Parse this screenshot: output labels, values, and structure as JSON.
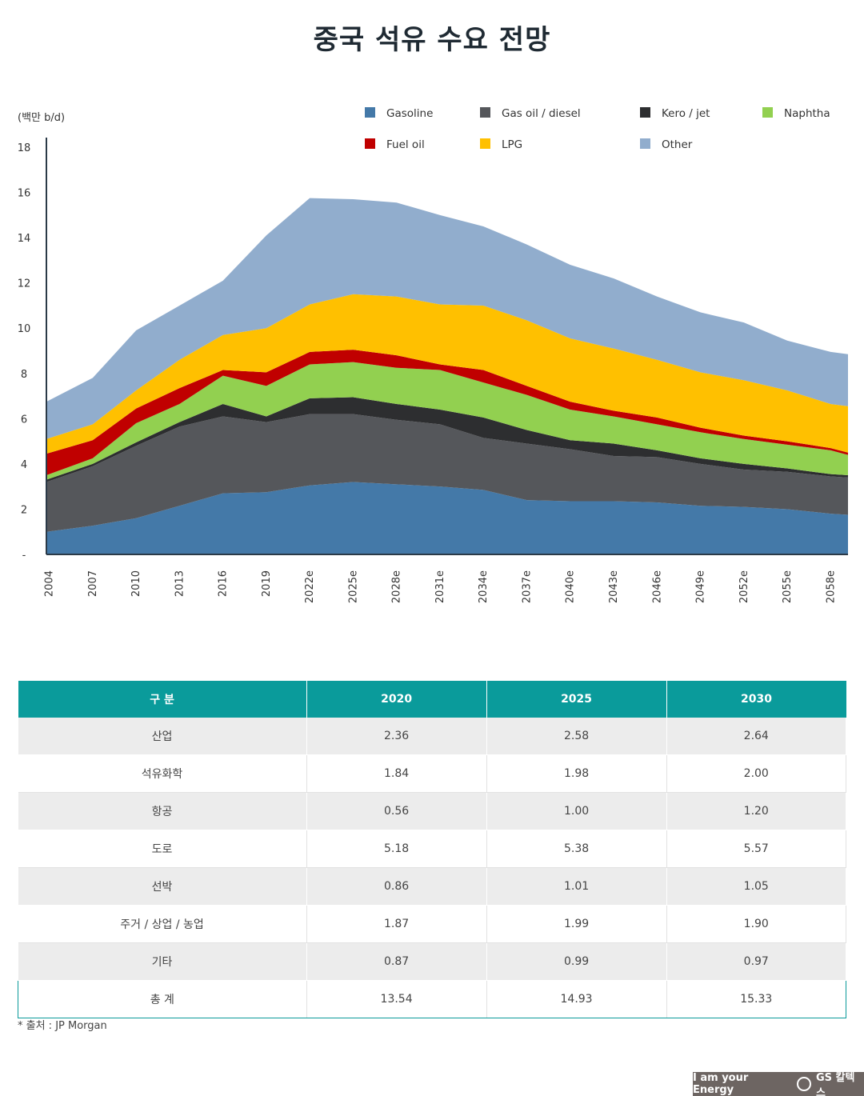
{
  "title": "중국 석유 수요 전망",
  "chart_data": {
    "type": "area",
    "stacked": true,
    "ylabel": "(백만 b/d)",
    "ylim": [
      0,
      18
    ],
    "yticks": [
      0,
      2,
      4,
      6,
      8,
      10,
      12,
      14,
      16,
      18
    ],
    "ytick_labels": [
      "-",
      "2",
      "4",
      "6",
      "8",
      "10",
      "12",
      "14",
      "16",
      "18"
    ],
    "x_tick_labels": [
      "2004",
      "2007",
      "2010",
      "2013",
      "2016",
      "2019",
      "2022e",
      "2025e",
      "2028e",
      "2031e",
      "2034e",
      "2037e",
      "2040e",
      "2043e",
      "2046e",
      "2049e",
      "2052e",
      "2055e",
      "2058e"
    ],
    "x": [
      2004,
      2007,
      2010,
      2013,
      2016,
      2019,
      2022,
      2025,
      2028,
      2031,
      2034,
      2037,
      2040,
      2043,
      2046,
      2049,
      2052,
      2055,
      2058,
      2059
    ],
    "legend_position": "top-right",
    "series": [
      {
        "name": "Gasoline",
        "color": "#4479a8",
        "values": [
          1.0,
          1.27,
          1.6,
          2.15,
          2.7,
          2.75,
          3.05,
          3.2,
          3.1,
          3.0,
          2.85,
          2.4,
          2.35,
          2.35,
          2.3,
          2.15,
          2.1,
          2.0,
          1.8,
          1.75
        ]
      },
      {
        "name": "Gas oil / diesel",
        "color": "#55575b",
        "values": [
          2.2,
          2.63,
          3.2,
          3.5,
          3.4,
          3.1,
          3.15,
          3.0,
          2.85,
          2.75,
          2.3,
          2.5,
          2.3,
          2.0,
          2.0,
          1.85,
          1.65,
          1.65,
          1.65,
          1.65
        ]
      },
      {
        "name": "Kero / jet",
        "color": "#2d2e30",
        "values": [
          0.1,
          0.1,
          0.15,
          0.2,
          0.55,
          0.25,
          0.7,
          0.75,
          0.7,
          0.65,
          0.9,
          0.6,
          0.4,
          0.55,
          0.3,
          0.25,
          0.25,
          0.15,
          0.1,
          0.1
        ]
      },
      {
        "name": "Naphtha",
        "color": "#92d050",
        "values": [
          0.2,
          0.25,
          0.85,
          0.8,
          1.25,
          1.35,
          1.5,
          1.55,
          1.6,
          1.75,
          1.55,
          1.55,
          1.35,
          1.2,
          1.15,
          1.15,
          1.1,
          1.05,
          1.05,
          0.9
        ]
      },
      {
        "name": "Fuel oil",
        "color": "#c00000",
        "values": [
          0.95,
          0.8,
          0.65,
          0.7,
          0.25,
          0.6,
          0.55,
          0.55,
          0.55,
          0.25,
          0.55,
          0.4,
          0.35,
          0.25,
          0.3,
          0.2,
          0.15,
          0.15,
          0.1,
          0.1
        ]
      },
      {
        "name": "LPG",
        "color": "#ffc000",
        "values": [
          0.65,
          0.7,
          0.8,
          1.25,
          1.55,
          1.95,
          2.1,
          2.45,
          2.6,
          2.65,
          2.85,
          2.9,
          2.8,
          2.75,
          2.55,
          2.45,
          2.45,
          2.25,
          1.95,
          2.05
        ]
      },
      {
        "name": "Other",
        "color": "#91adcd",
        "values": [
          1.65,
          2.05,
          2.65,
          2.4,
          2.4,
          4.1,
          4.7,
          4.2,
          4.15,
          3.95,
          3.5,
          3.35,
          3.25,
          3.1,
          2.8,
          2.65,
          2.55,
          2.2,
          2.3,
          2.3
        ]
      }
    ],
    "legend_order": [
      "Gasoline",
      "Gas oil / diesel",
      "Kero / jet",
      "Naphtha",
      "Fuel oil",
      "LPG",
      "Other"
    ]
  },
  "table": {
    "headers": [
      "구 분",
      "2020",
      "2025",
      "2030"
    ],
    "rows": [
      [
        "산업",
        "2.36",
        "2.58",
        "2.64"
      ],
      [
        "석유화학",
        "1.84",
        "1.98",
        "2.00"
      ],
      [
        "항공",
        "0.56",
        "1.00",
        "1.20"
      ],
      [
        "도로",
        "5.18",
        "5.38",
        "5.57"
      ],
      [
        "선박",
        "0.86",
        "1.01",
        "1.05"
      ],
      [
        "주거 / 상업 / 농업",
        "1.87",
        "1.99",
        "1.90"
      ],
      [
        "기타",
        "0.87",
        "0.99",
        "0.97"
      ]
    ],
    "total": [
      "총 계",
      "13.54",
      "14.93",
      "15.33"
    ]
  },
  "source": "* 출처 : JP Morgan",
  "brand": {
    "slogan": "I am your Energy",
    "logo_text": "GS 칼텍스"
  }
}
